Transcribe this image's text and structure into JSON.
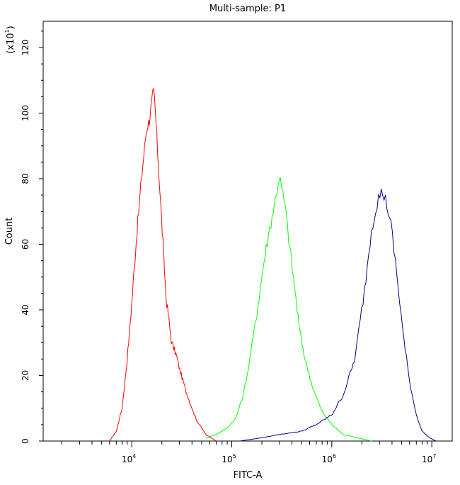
{
  "chart_data": {
    "type": "line",
    "title": "Multi-sample: P1",
    "xlabel": "FITC-A",
    "ylabel": "Count",
    "y_multiplier_label": {
      "prefix": "(x10",
      "exponent": "1",
      "suffix": ")"
    },
    "x_scale": "log",
    "xlim": [
      1300.0,
      16000000.0
    ],
    "ylim": [
      0,
      128
    ],
    "x_ticks": [
      {
        "value": 10000.0,
        "base": "10",
        "exp": "4"
      },
      {
        "value": 100000.0,
        "base": "10",
        "exp": "5"
      },
      {
        "value": 1000000.0,
        "base": "10",
        "exp": "6"
      },
      {
        "value": 10000000.0,
        "base": "10",
        "exp": "7"
      }
    ],
    "y_ticks": [
      0,
      20,
      40,
      60,
      80,
      100,
      120
    ],
    "grid": false,
    "legend": "none",
    "series": [
      {
        "color": "#ff0000",
        "x": [
          6000,
          7000,
          8000,
          9000,
          10000,
          11000,
          12500,
          14000,
          15000,
          16000,
          16500,
          17000,
          18000,
          20000,
          22000,
          25000,
          28000,
          30000,
          35000,
          40000,
          45000,
          50000,
          55000,
          62000,
          70000
        ],
        "y": [
          0,
          3,
          10,
          25,
          42,
          60,
          80,
          95,
          98,
          104,
          107,
          103,
          90,
          66,
          44,
          30,
          26,
          22,
          15,
          10,
          6,
          4,
          2,
          1,
          0
        ]
      },
      {
        "color": "#00ff00",
        "x": [
          55000,
          70000,
          90000,
          110000,
          130000,
          150000,
          180000,
          210000,
          240000,
          270000,
          300000,
          315000,
          340000,
          370000,
          420000,
          480000,
          550000,
          650000,
          800000,
          1000000,
          1300000,
          1800000,
          2500000
        ],
        "y": [
          1,
          2,
          4,
          7,
          14,
          24,
          40,
          55,
          65,
          73,
          81,
          77,
          72,
          62,
          48,
          33,
          24,
          16,
          9,
          5,
          2,
          1,
          0
        ]
      },
      {
        "color": "#00008b",
        "x": [
          120000,
          200000,
          300000,
          500000,
          700000,
          1000000,
          1300000,
          1700000,
          2100000,
          2500000,
          2900000,
          3200000,
          3500000,
          3900000,
          4500000,
          5200000,
          6000000,
          7000000,
          8000000,
          9500000,
          11000000
        ],
        "y": [
          0,
          1,
          2,
          3,
          5,
          8,
          14,
          25,
          45,
          65,
          74,
          76,
          73,
          66,
          50,
          32,
          18,
          8,
          3,
          1,
          0
        ]
      }
    ]
  }
}
